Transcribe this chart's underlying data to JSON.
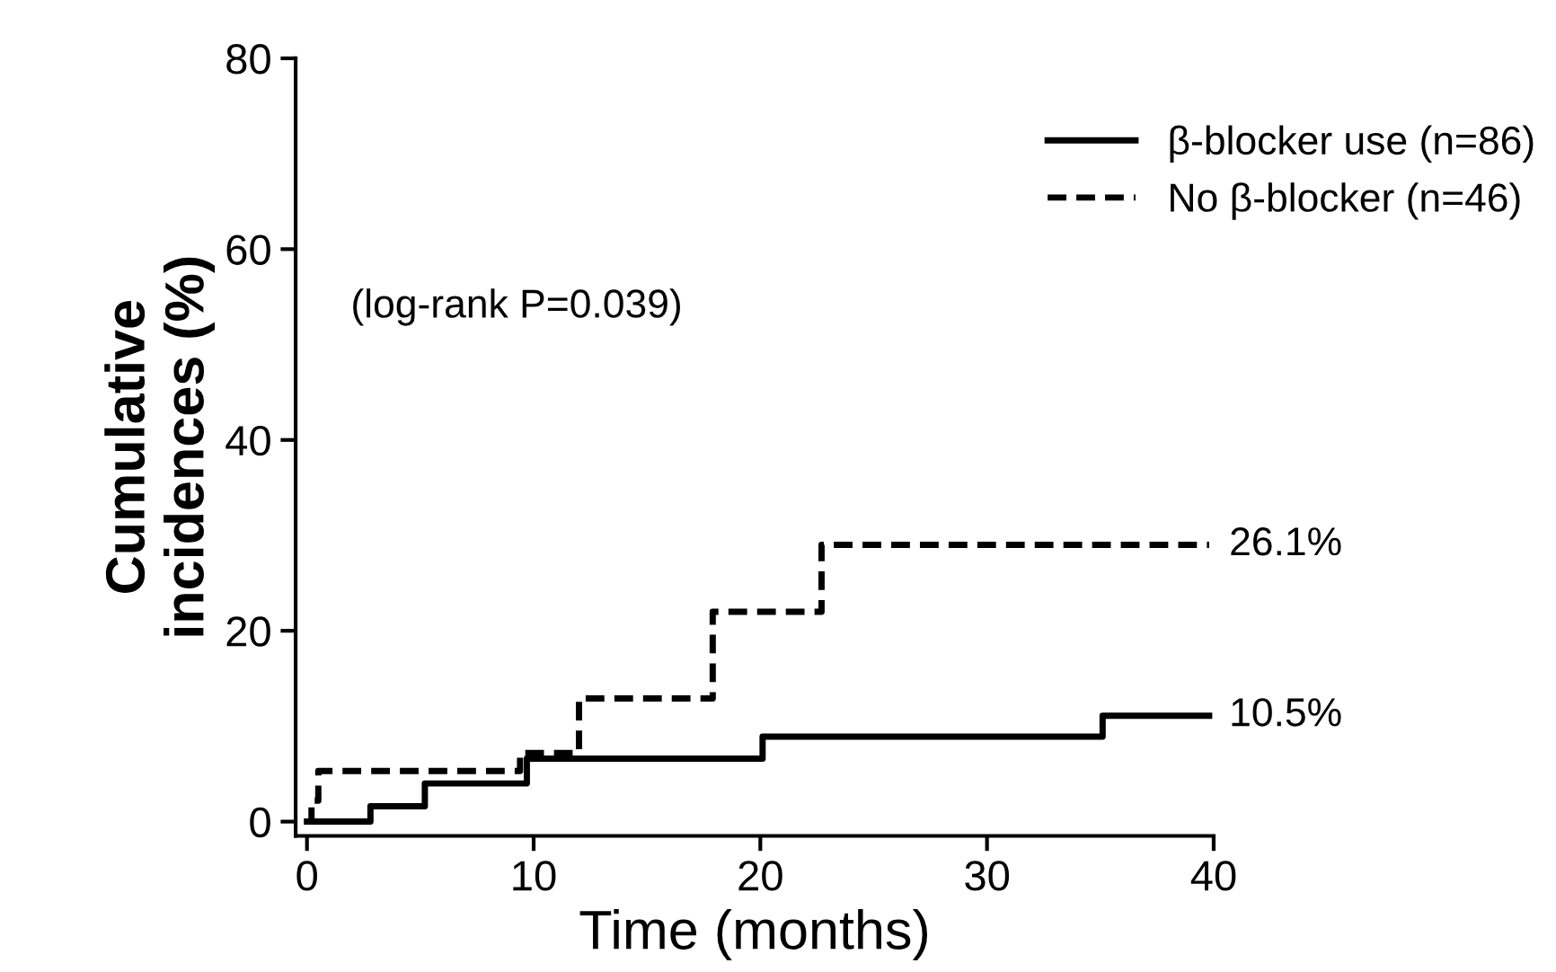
{
  "chart_data": {
    "type": "step",
    "xlabel": "Time (months)",
    "ylabel": "Cumulative\nincidences (%)",
    "series": [
      {
        "name": "β-blocker use (n=86)",
        "color": "#000000",
        "line_style": "solid",
        "x": [
          0,
          2.8,
          5.2,
          9.7,
          20.1,
          35.1,
          39.8
        ],
        "values": [
          0,
          1.6,
          4.0,
          6.6,
          8.9,
          11.1,
          11.1
        ]
      },
      {
        "name": "No β-blocker (n=46)",
        "color": "#000000",
        "line_style": "dashed",
        "x": [
          0,
          0.2,
          0.5,
          9.4,
          12.0,
          17.9,
          22.7,
          39.8
        ],
        "values": [
          0,
          2.2,
          5.3,
          7.2,
          12.9,
          22.0,
          29.0,
          29.0
        ]
      }
    ],
    "annotations": [
      "(log-rank P=0.039)",
      "10.5%",
      "26.1%"
    ],
    "xlim": [
      -0.5,
      40
    ],
    "ylim": [
      -1.5,
      80
    ],
    "xticks": [
      0,
      10,
      20,
      30,
      40
    ],
    "yticks": [
      0,
      20,
      40,
      60,
      80
    ],
    "grid": false,
    "legend": "top right",
    "marker": "none"
  }
}
